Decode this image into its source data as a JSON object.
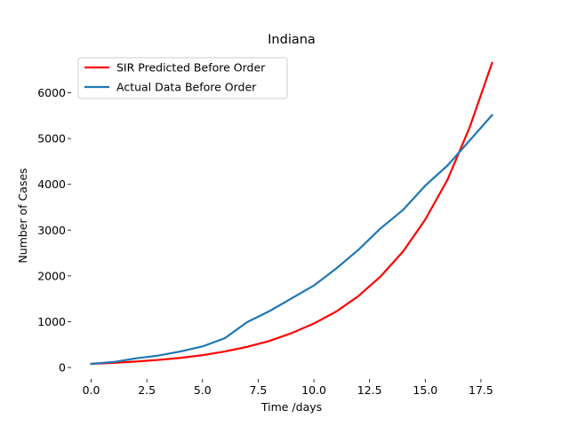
{
  "chart_data": {
    "type": "line",
    "title": "Indiana",
    "xlabel": "Time /days",
    "ylabel": "Number of Cases",
    "xlim": [
      -0.9,
      18.9
    ],
    "ylim": [
      -250,
      6900
    ],
    "xticks": [
      0.0,
      2.5,
      5.0,
      7.5,
      10.0,
      12.5,
      15.0,
      17.5
    ],
    "xtick_labels": [
      "0.0",
      "2.5",
      "5.0",
      "7.5",
      "10.0",
      "12.5",
      "15.0",
      "17.5"
    ],
    "yticks": [
      0,
      1000,
      2000,
      3000,
      4000,
      5000,
      6000
    ],
    "ytick_labels": [
      "0",
      "1000",
      "2000",
      "3000",
      "4000",
      "5000",
      "6000"
    ],
    "grid": false,
    "legend_position": "top-left",
    "x": [
      0,
      1,
      2,
      3,
      4,
      5,
      6,
      7,
      8,
      9,
      10,
      11,
      12,
      13,
      14,
      15,
      16,
      17,
      18
    ],
    "series": [
      {
        "name": "SIR Predicted Before Order",
        "color": "#ff0000",
        "values": [
          80,
          100,
          130,
          165,
          210,
          270,
          350,
          450,
          580,
          750,
          960,
          1220,
          1560,
          1990,
          2530,
          3230,
          4100,
          5250,
          6650
        ]
      },
      {
        "name": "Actual Data Before Order",
        "color": "#1f77b4",
        "values": [
          80,
          120,
          200,
          260,
          350,
          460,
          640,
          990,
          1230,
          1510,
          1790,
          2160,
          2570,
          3040,
          3440,
          3970,
          4410,
          4960,
          5510
        ]
      }
    ]
  }
}
